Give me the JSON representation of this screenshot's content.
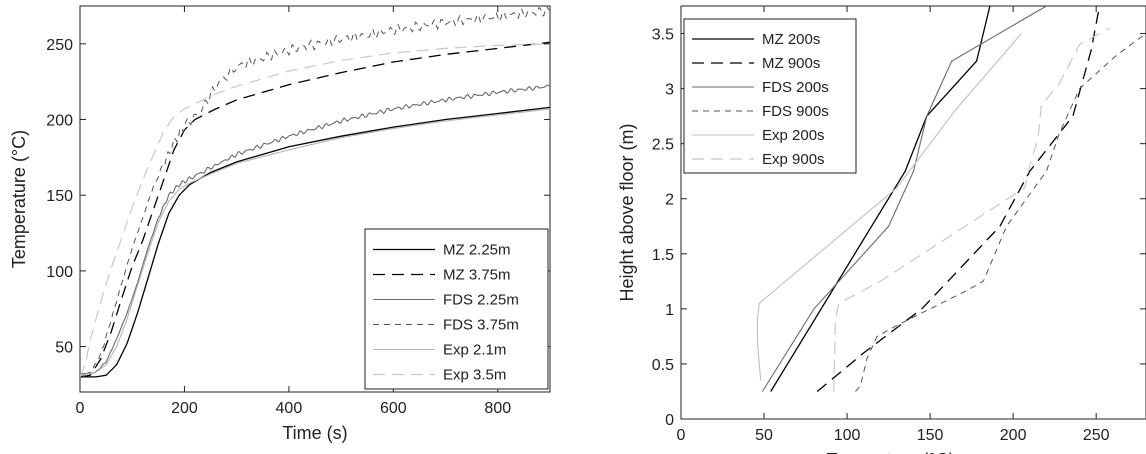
{
  "chart_data": [
    {
      "type": "line",
      "xlabel": "Time (s)",
      "ylabel": "Temperature (°C)",
      "xlim": [
        0,
        900
      ],
      "ylim": [
        20,
        275
      ],
      "xticks": [
        0,
        200,
        400,
        600,
        800
      ],
      "yticks": [
        50,
        100,
        150,
        200,
        250
      ],
      "legend_position": "bottom-right",
      "series": [
        {
          "name": "MZ 2.25m",
          "color": "#000000",
          "dash": "solid",
          "width": 1.3,
          "x": [
            0,
            30,
            50,
            70,
            90,
            110,
            130,
            150,
            170,
            190,
            210,
            250,
            300,
            400,
            500,
            600,
            700,
            800,
            900
          ],
          "y": [
            30,
            30,
            31,
            38,
            52,
            72,
            95,
            118,
            138,
            150,
            157,
            165,
            172,
            182,
            189,
            195,
            200,
            204,
            208
          ]
        },
        {
          "name": "MZ 3.75m",
          "color": "#000000",
          "dash": "12,7",
          "width": 1.3,
          "x": [
            0,
            20,
            40,
            60,
            80,
            100,
            120,
            140,
            160,
            180,
            200,
            220,
            260,
            300,
            400,
            500,
            600,
            700,
            800,
            900
          ],
          "y": [
            30,
            31,
            42,
            60,
            82,
            103,
            120,
            140,
            160,
            180,
            193,
            200,
            207,
            213,
            223,
            231,
            238,
            243,
            247,
            251
          ]
        },
        {
          "name": "FDS 2.25m",
          "color": "#6b6b6b",
          "dash": "solid",
          "width": 1.1,
          "noise": 1.5,
          "x": [
            0,
            30,
            50,
            70,
            90,
            110,
            130,
            150,
            170,
            190,
            210,
            250,
            300,
            400,
            500,
            600,
            700,
            800,
            900
          ],
          "y": [
            32,
            33,
            40,
            55,
            72,
            92,
            115,
            135,
            150,
            157,
            161,
            168,
            177,
            189,
            199,
            207,
            213,
            218,
            222
          ]
        },
        {
          "name": "FDS 3.75m",
          "color": "#555555",
          "dash": "6,5",
          "width": 1.0,
          "noise": 3.5,
          "x": [
            0,
            20,
            40,
            60,
            80,
            100,
            120,
            140,
            160,
            180,
            200,
            230,
            260,
            300,
            400,
            500,
            600,
            700,
            800,
            900
          ],
          "y": [
            30,
            32,
            45,
            68,
            92,
            115,
            135,
            155,
            170,
            185,
            196,
            205,
            222,
            235,
            246,
            253,
            259,
            264,
            268,
            272
          ]
        },
        {
          "name": "Exp 2.1m",
          "color": "#b4b4b4",
          "dash": "solid",
          "width": 1.1,
          "x": [
            0,
            30,
            50,
            70,
            90,
            110,
            130,
            150,
            170,
            190,
            210,
            250,
            300,
            400,
            500,
            600,
            700,
            800,
            900
          ],
          "y": [
            31,
            33,
            38,
            50,
            68,
            90,
            112,
            132,
            146,
            154,
            158,
            164,
            171,
            180,
            188,
            194,
            199,
            203,
            207
          ]
        },
        {
          "name": "Exp 3.5m",
          "color": "#c8c8c8",
          "dash": "12,7",
          "width": 1.2,
          "x": [
            0,
            10,
            20,
            40,
            60,
            80,
            100,
            120,
            140,
            160,
            180,
            200,
            230,
            260,
            300,
            400,
            500,
            600,
            700,
            800,
            900
          ],
          "y": [
            30,
            38,
            55,
            80,
            102,
            122,
            142,
            160,
            176,
            192,
            202,
            207,
            212,
            217,
            222,
            232,
            239,
            244,
            247,
            249,
            250
          ]
        }
      ]
    },
    {
      "type": "line",
      "xlabel": "Temperture (°C)",
      "ylabel": "Height above floor (m)",
      "xlim": [
        0,
        280
      ],
      "ylim": [
        0,
        3.75
      ],
      "xticks": [
        0,
        50,
        100,
        150,
        200,
        250
      ],
      "yticks": [
        0,
        0.5,
        1,
        1.5,
        2,
        2.5,
        3,
        3.5
      ],
      "legend_position": "top-left",
      "series": [
        {
          "name": "MZ 200s",
          "color": "#000000",
          "dash": "solid",
          "width": 1.3,
          "x": [
            54,
            135,
            148,
            178,
            186
          ],
          "y": [
            0.25,
            2.25,
            2.75,
            3.25,
            3.75
          ]
        },
        {
          "name": "MZ 900s",
          "color": "#000000",
          "dash": "12,7",
          "width": 1.3,
          "x": [
            82,
            110,
            145,
            192,
            210,
            236,
            247,
            252
          ],
          "y": [
            0.25,
            0.6,
            1.0,
            1.75,
            2.25,
            2.75,
            3.35,
            3.75
          ]
        },
        {
          "name": "FDS 200s",
          "color": "#6b6b6b",
          "dash": "solid",
          "width": 1.1,
          "x": [
            49,
            80,
            125,
            140,
            148,
            163,
            220
          ],
          "y": [
            0.25,
            1.0,
            1.75,
            2.25,
            2.75,
            3.25,
            3.75
          ]
        },
        {
          "name": "FDS 900s",
          "color": "#555555",
          "dash": "6,5",
          "width": 1.0,
          "x": [
            105,
            108,
            112,
            118,
            130,
            170,
            182,
            196,
            220,
            228,
            240,
            262,
            280
          ],
          "y": [
            0.25,
            0.3,
            0.55,
            0.75,
            0.85,
            1.15,
            1.25,
            1.75,
            2.25,
            2.6,
            3.0,
            3.3,
            3.5
          ]
        },
        {
          "name": "Exp 200s",
          "color": "#c0c0c0",
          "dash": "solid",
          "width": 1.1,
          "x": [
            48,
            46,
            46,
            47,
            130,
            165,
            205
          ],
          "y": [
            0.35,
            0.7,
            0.9,
            1.05,
            2.1,
            2.8,
            3.5
          ]
        },
        {
          "name": "Exp 900s",
          "color": "#c8c8c8",
          "dash": "12,7",
          "width": 1.2,
          "x": [
            92,
            93,
            95,
            120,
            207,
            210,
            215,
            217,
            228,
            240,
            258
          ],
          "y": [
            0.25,
            0.9,
            1.05,
            1.25,
            2.1,
            2.3,
            2.55,
            2.85,
            3.05,
            3.4,
            3.55
          ]
        }
      ]
    }
  ]
}
